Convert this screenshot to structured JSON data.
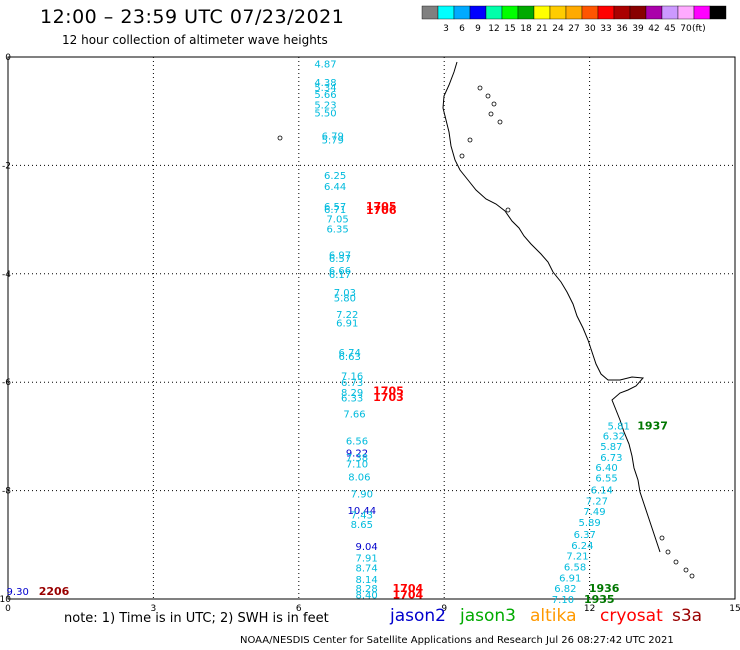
{
  "header": {
    "title": "12:00 – 23:59 UTC 07/23/2021",
    "subtitle": "12 hour collection of altimeter wave heights"
  },
  "color_scale": {
    "colors": [
      "#808080",
      "#00ffff",
      "#00aaff",
      "#0000ff",
      "#00ffaa",
      "#00ff00",
      "#00aa00",
      "#ffff00",
      "#ffcc00",
      "#ffaa00",
      "#ff5500",
      "#ff0000",
      "#aa0000",
      "#880000",
      "#aa00aa",
      "#cc99ff",
      "#ffaaff",
      "#ff00ff",
      "#000000"
    ],
    "labels": [
      "3",
      "6",
      "9",
      "12",
      "15",
      "18",
      "21",
      "24",
      "27",
      "30",
      "33",
      "36",
      "39",
      "42",
      "45",
      "70",
      "(ft)"
    ]
  },
  "axes": {
    "x_ticks": [
      "0",
      "3",
      "6",
      "9",
      "12",
      "15"
    ],
    "y_ticks": [
      "0",
      "-2",
      "-4",
      "-6",
      "-8",
      "-10"
    ],
    "xlim": [
      0,
      15
    ],
    "ylim": [
      -10,
      0
    ]
  },
  "observations": [
    {
      "lon": 6.55,
      "lat": -0.12,
      "swh": "4.87",
      "sat": "jason3"
    },
    {
      "lon": 6.55,
      "lat": -0.46,
      "swh": "4.38",
      "sat": "jason3"
    },
    {
      "lon": 6.55,
      "lat": -0.55,
      "swh": "5.34",
      "sat": "jason3"
    },
    {
      "lon": 6.55,
      "lat": -0.68,
      "swh": "5.66",
      "sat": "jason3"
    },
    {
      "lon": 6.55,
      "lat": -0.88,
      "swh": "5.23",
      "sat": "jason3"
    },
    {
      "lon": 6.55,
      "lat": -1.02,
      "swh": "5.50",
      "sat": "jason3"
    },
    {
      "lon": 6.7,
      "lat": -1.45,
      "swh": "6.79",
      "sat": "jason3"
    },
    {
      "lon": 6.7,
      "lat": -1.52,
      "swh": "5.79",
      "sat": "jason3"
    },
    {
      "lon": 6.75,
      "lat": -2.18,
      "swh": "6.25",
      "sat": "jason3"
    },
    {
      "lon": 6.75,
      "lat": -2.38,
      "swh": "6.44",
      "sat": "jason3"
    },
    {
      "lon": 6.75,
      "lat": -2.75,
      "swh": "6.57",
      "sat": "jason3"
    },
    {
      "lon": 6.75,
      "lat": -2.8,
      "swh": "6.71",
      "sat": "jason3"
    },
    {
      "lon": 6.8,
      "lat": -2.98,
      "swh": "7.05",
      "sat": "jason3"
    },
    {
      "lon": 6.8,
      "lat": -3.16,
      "swh": "6.35",
      "sat": "jason3"
    },
    {
      "lon": 6.85,
      "lat": -3.64,
      "swh": "6.97",
      "sat": "jason3"
    },
    {
      "lon": 6.85,
      "lat": -3.71,
      "swh": "6.57",
      "sat": "jason3"
    },
    {
      "lon": 6.85,
      "lat": -3.93,
      "swh": "6.66",
      "sat": "jason3"
    },
    {
      "lon": 6.85,
      "lat": -4.0,
      "swh": "6.17",
      "sat": "jason3"
    },
    {
      "lon": 6.95,
      "lat": -4.34,
      "swh": "7.03",
      "sat": "jason3"
    },
    {
      "lon": 6.95,
      "lat": -4.44,
      "swh": "5.80",
      "sat": "jason3"
    },
    {
      "lon": 7.0,
      "lat": -4.74,
      "swh": "7.22",
      "sat": "jason3"
    },
    {
      "lon": 7.0,
      "lat": -4.9,
      "swh": "6.91",
      "sat": "jason3"
    },
    {
      "lon": 7.05,
      "lat": -5.44,
      "swh": "6.74",
      "sat": "jason3"
    },
    {
      "lon": 7.05,
      "lat": -5.52,
      "swh": "6.63",
      "sat": "jason3"
    },
    {
      "lon": 7.1,
      "lat": -5.88,
      "swh": "7.16",
      "sat": "jason3"
    },
    {
      "lon": 7.1,
      "lat": -6.0,
      "swh": "6.73",
      "sat": "jason3"
    },
    {
      "lon": 7.1,
      "lat": -6.18,
      "swh": "8.29",
      "sat": "jason3"
    },
    {
      "lon": 7.1,
      "lat": -6.28,
      "swh": "6.33",
      "sat": "jason3"
    },
    {
      "lon": 7.15,
      "lat": -6.58,
      "swh": "7.66",
      "sat": "jason3"
    },
    {
      "lon": 7.2,
      "lat": -7.08,
      "swh": "6.56",
      "sat": "jason3"
    },
    {
      "lon": 7.2,
      "lat": -7.3,
      "swh": "9.22",
      "sat": "jason2"
    },
    {
      "lon": 7.2,
      "lat": -7.38,
      "swh": "7.38",
      "sat": "jason3"
    },
    {
      "lon": 7.2,
      "lat": -7.5,
      "swh": "7.10",
      "sat": "jason3"
    },
    {
      "lon": 7.25,
      "lat": -7.74,
      "swh": "8.06",
      "sat": "jason3"
    },
    {
      "lon": 7.3,
      "lat": -8.05,
      "swh": "7.90",
      "sat": "jason3"
    },
    {
      "lon": 7.3,
      "lat": -8.36,
      "swh": "10.44",
      "sat": "jason2"
    },
    {
      "lon": 7.3,
      "lat": -8.44,
      "swh": "7.43",
      "sat": "jason3"
    },
    {
      "lon": 7.3,
      "lat": -8.62,
      "swh": "8.65",
      "sat": "jason3"
    },
    {
      "lon": 7.4,
      "lat": -9.02,
      "swh": "9.04",
      "sat": "jason2"
    },
    {
      "lon": 7.4,
      "lat": -9.23,
      "swh": "7.91",
      "sat": "jason3"
    },
    {
      "lon": 7.4,
      "lat": -9.42,
      "swh": "8.74",
      "sat": "jason3"
    },
    {
      "lon": 7.4,
      "lat": -9.63,
      "swh": "8.14",
      "sat": "jason3"
    },
    {
      "lon": 7.4,
      "lat": -9.8,
      "swh": "8.28",
      "sat": "jason3"
    },
    {
      "lon": 7.4,
      "lat": -9.92,
      "swh": "8.40",
      "sat": "jason3"
    },
    {
      "lon": 12.6,
      "lat": -6.8,
      "swh": "5.81",
      "sat": "jason3"
    },
    {
      "lon": 12.5,
      "lat": -6.98,
      "swh": "6.32",
      "sat": "jason3"
    },
    {
      "lon": 12.45,
      "lat": -7.18,
      "swh": "5.87",
      "sat": "jason3"
    },
    {
      "lon": 12.45,
      "lat": -7.38,
      "swh": "6.73",
      "sat": "jason3"
    },
    {
      "lon": 12.35,
      "lat": -7.56,
      "swh": "6.40",
      "sat": "jason3"
    },
    {
      "lon": 12.35,
      "lat": -7.76,
      "swh": "6.55",
      "sat": "jason3"
    },
    {
      "lon": 12.25,
      "lat": -7.98,
      "swh": "6.14",
      "sat": "jason3"
    },
    {
      "lon": 12.15,
      "lat": -8.18,
      "swh": "7.27",
      "sat": "jason3"
    },
    {
      "lon": 12.1,
      "lat": -8.38,
      "swh": "7.49",
      "sat": "jason3"
    },
    {
      "lon": 12.0,
      "lat": -8.58,
      "swh": "5.89",
      "sat": "jason3"
    },
    {
      "lon": 11.9,
      "lat": -8.8,
      "swh": "6.37",
      "sat": "jason3"
    },
    {
      "lon": 11.85,
      "lat": -9.0,
      "swh": "6.24",
      "sat": "jason3"
    },
    {
      "lon": 11.75,
      "lat": -9.2,
      "swh": "7.21",
      "sat": "jason3"
    },
    {
      "lon": 11.7,
      "lat": -9.4,
      "swh": "6.58",
      "sat": "jason3"
    },
    {
      "lon": 11.6,
      "lat": -9.6,
      "swh": "6.91",
      "sat": "jason3"
    },
    {
      "lon": 11.5,
      "lat": -9.8,
      "swh": "6.82",
      "sat": "jason3"
    },
    {
      "lon": 11.45,
      "lat": -10.0,
      "swh": "7.10",
      "sat": "jason3"
    },
    {
      "lon": 0.2,
      "lat": -9.85,
      "swh": "9.30",
      "sat": "jason2"
    }
  ],
  "time_labels": [
    {
      "lon": 7.7,
      "lat": -2.75,
      "text": "1705",
      "sat": "cryosat"
    },
    {
      "lon": 7.7,
      "lat": -2.82,
      "text": "1706",
      "sat": "cryosat"
    },
    {
      "lon": 7.85,
      "lat": -6.15,
      "text": "1705",
      "sat": "cryosat"
    },
    {
      "lon": 7.85,
      "lat": -6.27,
      "text": "1703",
      "sat": "cryosat"
    },
    {
      "lon": 8.25,
      "lat": -9.8,
      "text": "1704",
      "sat": "cryosat"
    },
    {
      "lon": 8.25,
      "lat": -9.92,
      "text": "1704",
      "sat": "cryosat"
    },
    {
      "lon": 13.3,
      "lat": -6.8,
      "text": "1937",
      "sat": "jason3"
    },
    {
      "lon": 12.3,
      "lat": -9.8,
      "text": "1936",
      "sat": "jason3"
    },
    {
      "lon": 12.2,
      "lat": -10.0,
      "text": "1935",
      "sat": "jason3"
    },
    {
      "lon": 0.95,
      "lat": -9.85,
      "text": "2206",
      "sat": "s3a"
    }
  ],
  "sat_colors": {
    "jason2": "#0000cc",
    "jason3": "#00bbdd",
    "altika": "#ff9900",
    "cryosat": "#ff0000",
    "s3a": "#990000",
    "jason3_time": "#007700"
  },
  "footer": {
    "note": "note: 1) Time is in UTC; 2) SWH is in feet",
    "satellites": [
      {
        "name": "jason2",
        "color": "#0000cc"
      },
      {
        "name": "jason3",
        "color": "#00aa00"
      },
      {
        "name": "altika",
        "color": "#ff9900"
      },
      {
        "name": "cryosat",
        "color": "#ff0000"
      },
      {
        "name": "s3a",
        "color": "#990000"
      }
    ],
    "credit": "NOAA/NESDIS Center for Satellite Applications and Research   Jul 26 08:27:42 UTC 2021"
  }
}
